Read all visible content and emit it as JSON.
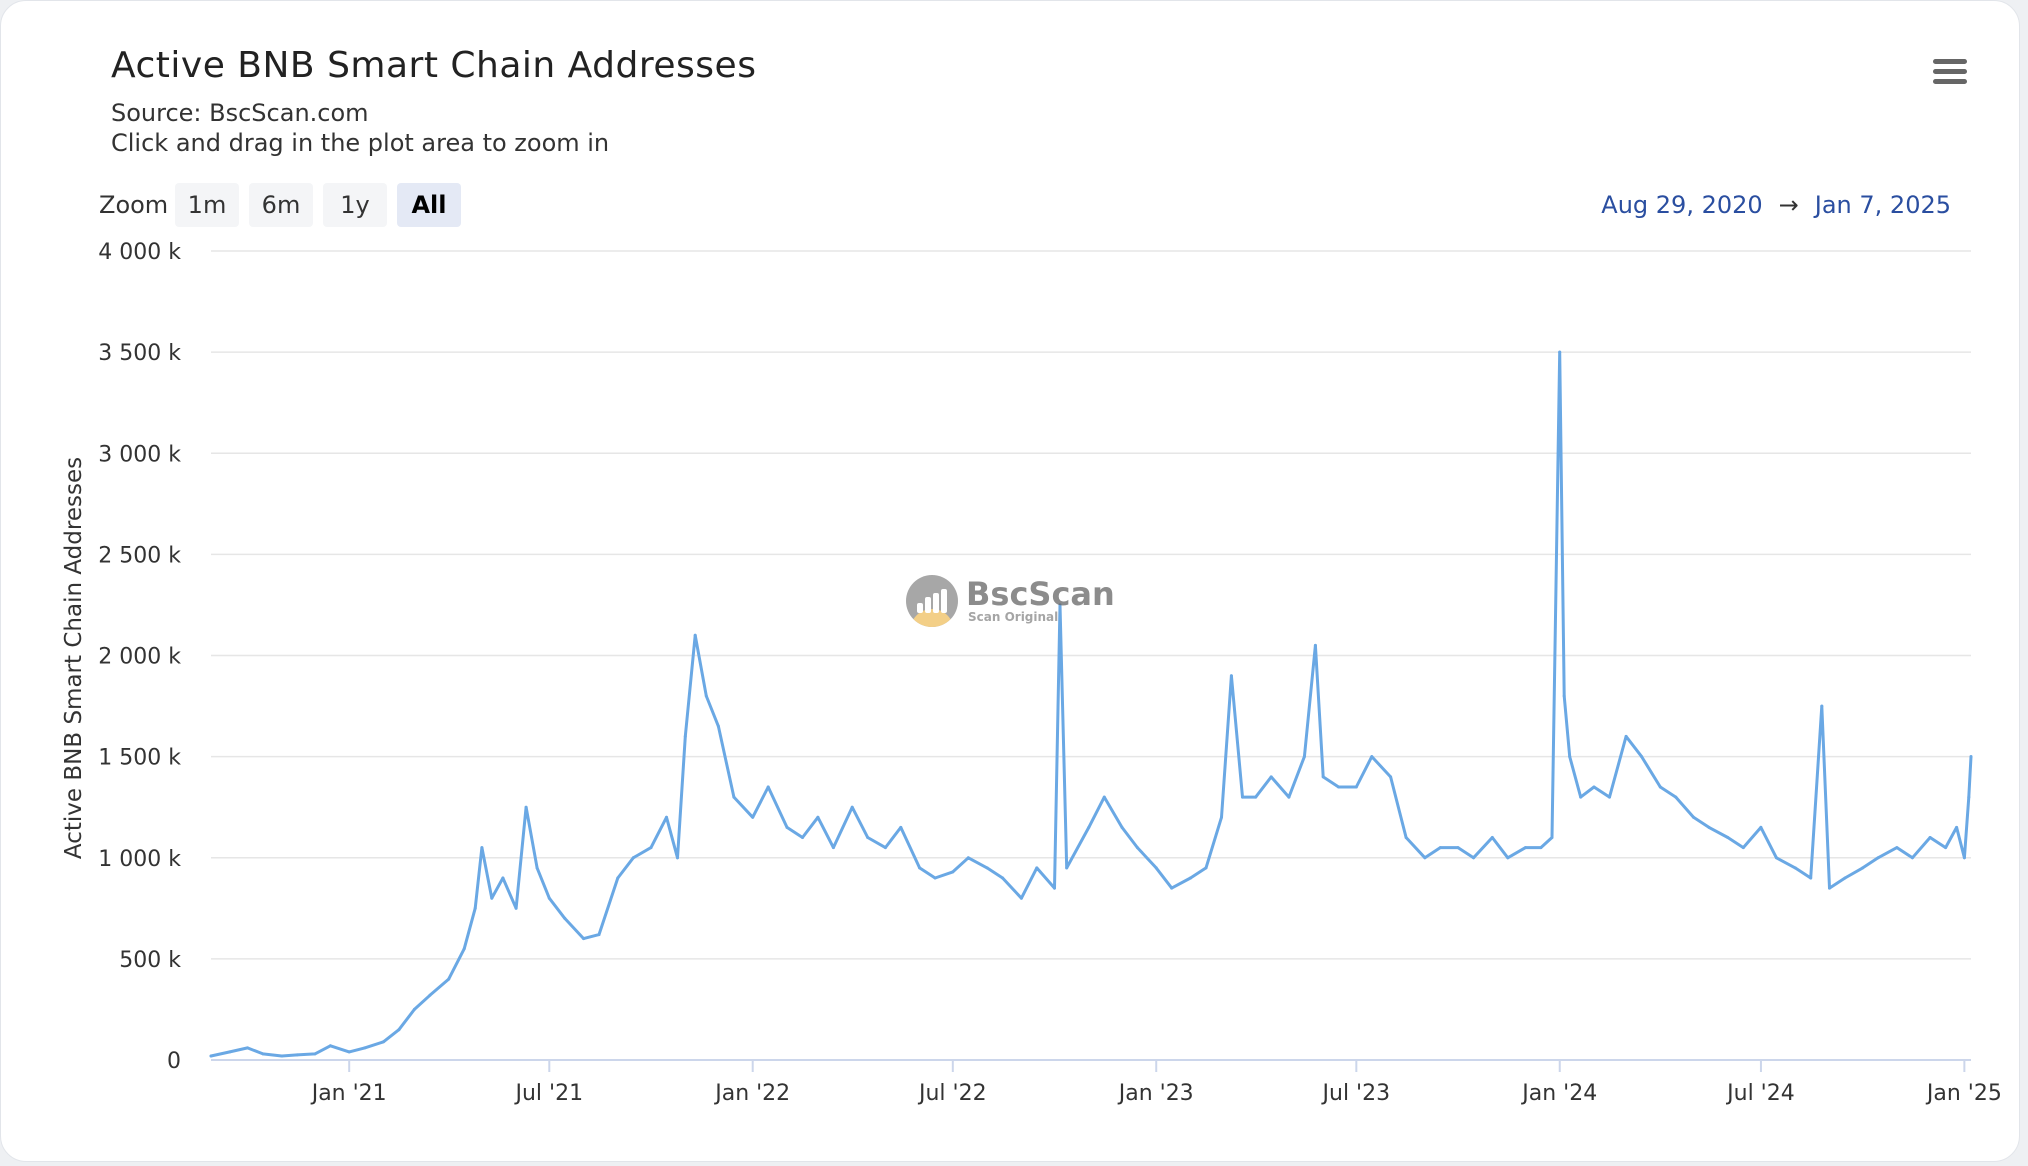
{
  "header": {
    "title": "Active BNB Smart Chain Addresses",
    "subtitle_source": "Source: BscScan.com",
    "subtitle_hint": "Click and drag in the plot area to zoom in"
  },
  "toolbar": {
    "menu_icon": "hamburger-menu-icon",
    "zoom_label": "Zoom",
    "zoom_buttons": [
      "1m",
      "6m",
      "1y",
      "All"
    ],
    "active_zoom": "All",
    "range_from": "Aug 29, 2020",
    "range_arrow": "→",
    "range_to": "Jan 7, 2025"
  },
  "watermark": {
    "name": "BscScan",
    "tagline": "Scan Original"
  },
  "colors": {
    "series": "#6aa8e4",
    "grid": "#e6e6e6",
    "axis": "#ccd6eb",
    "range_text": "#2a4ea0"
  },
  "chart_data": {
    "type": "line",
    "title": "Active BNB Smart Chain Addresses",
    "subtitle": "Source: BscScan.com",
    "xlabel": "",
    "ylabel": "Active BNB Smart Chain Addresses",
    "ylim": [
      0,
      4000000
    ],
    "yticks": [
      0,
      500000,
      1000000,
      1500000,
      2000000,
      2500000,
      3000000,
      3500000,
      4000000
    ],
    "ytick_labels": [
      "0",
      "500 k",
      "1 000 k",
      "1 500 k",
      "2 000 k",
      "2 500 k",
      "3 000 k",
      "3 500 k",
      "4 000 k"
    ],
    "xlim": [
      "2020-08-29",
      "2025-01-07"
    ],
    "xticks": [
      "2021-01-01",
      "2021-07-01",
      "2022-01-01",
      "2022-07-01",
      "2023-01-01",
      "2023-07-01",
      "2024-01-01",
      "2024-07-01",
      "2025-01-01"
    ],
    "xtick_labels": [
      "Jan '21",
      "Jul '21",
      "Jan '22",
      "Jul '22",
      "Jan '23",
      "Jul '23",
      "Jan '24",
      "Jul '24",
      "Jan '25"
    ],
    "grid": true,
    "legend": "none",
    "series": [
      {
        "name": "Active BNB Smart Chain Addresses",
        "x": [
          "2020-08-29",
          "2020-09-15",
          "2020-10-01",
          "2020-10-15",
          "2020-11-01",
          "2020-11-15",
          "2020-12-01",
          "2020-12-15",
          "2021-01-01",
          "2021-01-15",
          "2021-02-01",
          "2021-02-15",
          "2021-03-01",
          "2021-03-15",
          "2021-04-01",
          "2021-04-15",
          "2021-04-25",
          "2021-05-01",
          "2021-05-10",
          "2021-05-20",
          "2021-06-01",
          "2021-06-10",
          "2021-06-20",
          "2021-07-01",
          "2021-07-15",
          "2021-08-01",
          "2021-08-15",
          "2021-09-01",
          "2021-09-15",
          "2021-10-01",
          "2021-10-15",
          "2021-10-25",
          "2021-11-01",
          "2021-11-10",
          "2021-11-20",
          "2021-12-01",
          "2021-12-15",
          "2022-01-01",
          "2022-01-15",
          "2022-02-01",
          "2022-02-15",
          "2022-03-01",
          "2022-03-15",
          "2022-04-01",
          "2022-04-15",
          "2022-05-01",
          "2022-05-15",
          "2022-06-01",
          "2022-06-15",
          "2022-07-01",
          "2022-07-15",
          "2022-08-01",
          "2022-08-15",
          "2022-09-01",
          "2022-09-15",
          "2022-10-01",
          "2022-10-06",
          "2022-10-12",
          "2022-11-01",
          "2022-11-15",
          "2022-12-01",
          "2022-12-15",
          "2023-01-01",
          "2023-01-15",
          "2023-02-01",
          "2023-02-15",
          "2023-03-01",
          "2023-03-10",
          "2023-03-20",
          "2023-04-01",
          "2023-04-15",
          "2023-05-01",
          "2023-05-15",
          "2023-05-25",
          "2023-06-01",
          "2023-06-15",
          "2023-07-01",
          "2023-07-15",
          "2023-08-01",
          "2023-08-15",
          "2023-09-01",
          "2023-09-15",
          "2023-10-01",
          "2023-10-15",
          "2023-11-01",
          "2023-11-15",
          "2023-12-01",
          "2023-12-15",
          "2023-12-25",
          "2024-01-01",
          "2024-01-05",
          "2024-01-10",
          "2024-01-20",
          "2024-02-01",
          "2024-02-15",
          "2024-03-01",
          "2024-03-15",
          "2024-04-01",
          "2024-04-15",
          "2024-05-01",
          "2024-05-15",
          "2024-06-01",
          "2024-06-15",
          "2024-07-01",
          "2024-07-15",
          "2024-08-01",
          "2024-08-15",
          "2024-08-25",
          "2024-09-01",
          "2024-09-15",
          "2024-10-01",
          "2024-10-15",
          "2024-11-01",
          "2024-11-15",
          "2024-12-01",
          "2024-12-15",
          "2024-12-25",
          "2025-01-01",
          "2025-01-05",
          "2025-01-07"
        ],
        "values": [
          20000,
          40000,
          60000,
          30000,
          20000,
          25000,
          30000,
          70000,
          40000,
          60000,
          90000,
          150000,
          250000,
          320000,
          400000,
          550000,
          750000,
          1050000,
          800000,
          900000,
          750000,
          1250000,
          950000,
          800000,
          700000,
          600000,
          620000,
          900000,
          1000000,
          1050000,
          1200000,
          1000000,
          1600000,
          2100000,
          1800000,
          1650000,
          1300000,
          1200000,
          1350000,
          1150000,
          1100000,
          1200000,
          1050000,
          1250000,
          1100000,
          1050000,
          1150000,
          950000,
          900000,
          930000,
          1000000,
          950000,
          900000,
          800000,
          950000,
          850000,
          2250000,
          950000,
          1150000,
          1300000,
          1150000,
          1050000,
          950000,
          850000,
          900000,
          950000,
          1200000,
          1900000,
          1300000,
          1300000,
          1400000,
          1300000,
          1500000,
          2050000,
          1400000,
          1350000,
          1350000,
          1500000,
          1400000,
          1100000,
          1000000,
          1050000,
          1050000,
          1000000,
          1100000,
          1000000,
          1050000,
          1050000,
          1100000,
          3500000,
          1800000,
          1500000,
          1300000,
          1350000,
          1300000,
          1600000,
          1500000,
          1350000,
          1300000,
          1200000,
          1150000,
          1100000,
          1050000,
          1150000,
          1000000,
          950000,
          900000,
          1750000,
          850000,
          900000,
          950000,
          1000000,
          1050000,
          1000000,
          1100000,
          1050000,
          1150000,
          1000000,
          1300000,
          1500000
        ]
      }
    ]
  }
}
